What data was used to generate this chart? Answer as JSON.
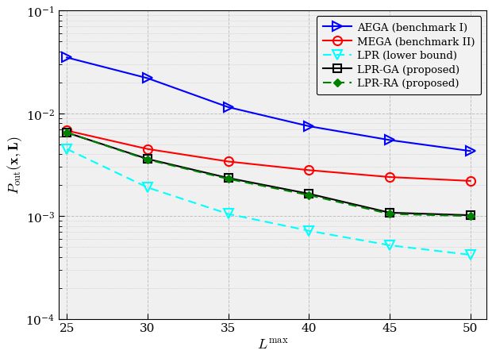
{
  "x": [
    25,
    30,
    35,
    40,
    45,
    50
  ],
  "AEGA": [
    0.035,
    0.022,
    0.0115,
    0.0075,
    0.0055,
    0.0043
  ],
  "MEGA": [
    0.0068,
    0.0045,
    0.0034,
    0.0028,
    0.0024,
    0.0022
  ],
  "LPR": [
    0.0045,
    0.0019,
    0.00105,
    0.00072,
    0.00052,
    0.00042
  ],
  "LPR_GA": [
    0.0065,
    0.0036,
    0.00235,
    0.00165,
    0.00108,
    0.00102
  ],
  "LPR_RA": [
    0.0065,
    0.00355,
    0.0023,
    0.0016,
    0.00105,
    0.001
  ],
  "ylim": [
    0.0001,
    0.1
  ],
  "xlim": [
    24.5,
    51
  ],
  "xticks": [
    25,
    30,
    35,
    40,
    45,
    50
  ],
  "xlabel": "$L^\\mathrm{max}$",
  "ylabel": "$P_\\mathrm{out}(\\mathbf{x}, \\mathbf{L})$",
  "legend_labels": [
    "AEGA (benchmark I)",
    "MEGA (benchmark II)",
    "LPR (lower bound)",
    "LPR-GA (proposed)",
    "LPR-RA (proposed)"
  ],
  "bg_color": "#f0f0f0",
  "grid_color": "#cccccc"
}
